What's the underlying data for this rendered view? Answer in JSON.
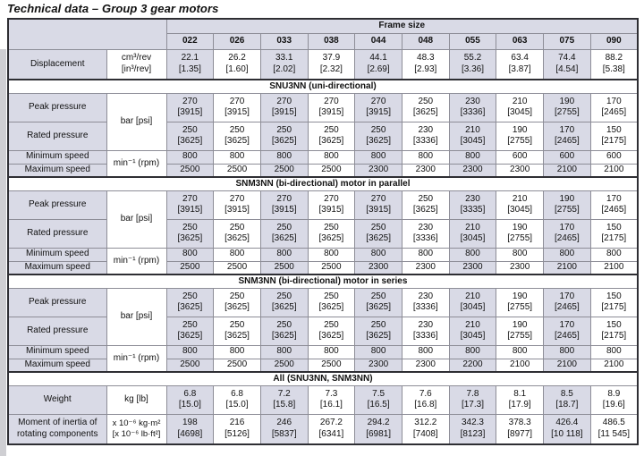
{
  "title": "Technical data – Group 3 gear motors",
  "colors": {
    "header_fill": "#d9dae6",
    "border_thin": "#8d8d97",
    "border_thick": "#2e2e33",
    "text": "#111111"
  },
  "table": {
    "frame_size_label": "Frame size",
    "columns": [
      "022",
      "026",
      "033",
      "038",
      "044",
      "048",
      "055",
      "063",
      "075",
      "090"
    ],
    "displacement": {
      "label": "Displacement",
      "unit_top": "cm³/rev",
      "unit_bottom": "[in³/rev]",
      "metric": [
        "22.1",
        "26.2",
        "33.1",
        "37.9",
        "44.1",
        "48.3",
        "55.2",
        "63.4",
        "74.4",
        "88.2"
      ],
      "imperial": [
        "[1.35]",
        "[1.60]",
        "[2.02]",
        "[2.32]",
        "[2.69]",
        "[2.93]",
        "[3.36]",
        "[3.87]",
        "[4.54]",
        "[5.38]"
      ]
    },
    "sections": [
      {
        "heading": "SNU3NN (uni-directional)",
        "pressure_unit": "bar [psi]",
        "speed_unit": "min⁻¹ (rpm)",
        "rows": [
          {
            "label": "Peak pressure",
            "values": [
              "270",
              "270",
              "270",
              "270",
              "270",
              "250",
              "230",
              "210",
              "190",
              "170"
            ],
            "sub": [
              "[3915]",
              "[3915]",
              "[3915]",
              "[3915]",
              "[3915]",
              "[3625]",
              "[3336]",
              "[3045]",
              "[2755]",
              "[2465]"
            ]
          },
          {
            "label": "Rated pressure",
            "values": [
              "250",
              "250",
              "250",
              "250",
              "250",
              "230",
              "210",
              "190",
              "170",
              "150"
            ],
            "sub": [
              "[3625]",
              "[3625]",
              "[3625]",
              "[3625]",
              "[3625]",
              "[3336]",
              "[3045]",
              "[2755]",
              "[2465]",
              "[2175]"
            ]
          },
          {
            "label": "Minimum speed",
            "values": [
              "800",
              "800",
              "800",
              "800",
              "800",
              "800",
              "800",
              "600",
              "600",
              "600"
            ]
          },
          {
            "label": "Maximum speed",
            "values": [
              "2500",
              "2500",
              "2500",
              "2500",
              "2300",
              "2300",
              "2300",
              "2300",
              "2100",
              "2100"
            ]
          }
        ]
      },
      {
        "heading": "SNM3NN (bi-directional) motor in parallel",
        "pressure_unit": "bar [psi]",
        "speed_unit": "min⁻¹ (rpm)",
        "rows": [
          {
            "label": "Peak pressure",
            "values": [
              "270",
              "270",
              "270",
              "270",
              "270",
              "250",
              "230",
              "210",
              "190",
              "170"
            ],
            "sub": [
              "[3915]",
              "[3915]",
              "[3915]",
              "[3915]",
              "[3915]",
              "[3625]",
              "[3335]",
              "[3045]",
              "[2755]",
              "[2465]"
            ]
          },
          {
            "label": "Rated pressure",
            "values": [
              "250",
              "250",
              "250",
              "250",
              "250",
              "230",
              "210",
              "190",
              "170",
              "150"
            ],
            "sub": [
              "[3625]",
              "[3625]",
              "[3625]",
              "[3625]",
              "[3625]",
              "[3336]",
              "[3045]",
              "[2755]",
              "[2465]",
              "[2175]"
            ]
          },
          {
            "label": "Minimum speed",
            "values": [
              "800",
              "800",
              "800",
              "800",
              "800",
              "800",
              "800",
              "800",
              "800",
              "800"
            ]
          },
          {
            "label": "Maximum speed",
            "values": [
              "2500",
              "2500",
              "2500",
              "2500",
              "2300",
              "2300",
              "2300",
              "2300",
              "2100",
              "2100"
            ]
          }
        ]
      },
      {
        "heading": "SNM3NN (bi-directional) motor in series",
        "pressure_unit": "bar [psi]",
        "speed_unit": "min⁻¹ (rpm)",
        "rows": [
          {
            "label": "Peak pressure",
            "values": [
              "250",
              "250",
              "250",
              "250",
              "250",
              "230",
              "210",
              "190",
              "170",
              "150"
            ],
            "sub": [
              "[3625]",
              "[3625]",
              "[3625]",
              "[3625]",
              "[3625]",
              "[3336]",
              "[3045]",
              "[2755]",
              "[2465]",
              "[2175]"
            ]
          },
          {
            "label": "Rated pressure",
            "values": [
              "250",
              "250",
              "250",
              "250",
              "250",
              "230",
              "210",
              "190",
              "170",
              "150"
            ],
            "sub": [
              "[3625]",
              "[3625]",
              "[3625]",
              "[3625]",
              "[3625]",
              "[3336]",
              "[3045]",
              "[2755]",
              "[2465]",
              "[2175]"
            ]
          },
          {
            "label": "Minimum speed",
            "values": [
              "800",
              "800",
              "800",
              "800",
              "800",
              "800",
              "800",
              "800",
              "800",
              "800"
            ]
          },
          {
            "label": "Maximum speed",
            "values": [
              "2500",
              "2500",
              "2500",
              "2500",
              "2300",
              "2300",
              "2200",
              "2100",
              "2100",
              "2100"
            ]
          }
        ]
      }
    ],
    "all_section": {
      "heading": "All (SNU3NN, SNM3NN)",
      "weight": {
        "label": "Weight",
        "unit": "kg [lb]",
        "values": [
          "6.8",
          "6.8",
          "7.2",
          "7.3",
          "7.5",
          "7.6",
          "7.8",
          "8.1",
          "8.5",
          "8.9"
        ],
        "sub": [
          "[15.0]",
          "[15.0]",
          "[15.8]",
          "[16.1]",
          "[16.5]",
          "[16.8]",
          "[17.3]",
          "[17.9]",
          "[18.7]",
          "[19.6]"
        ]
      },
      "inertia": {
        "label_line1": "Moment of inertia of",
        "label_line2": "rotating components",
        "unit_top": "x 10⁻⁶ kg·m²",
        "unit_bottom": "[x 10⁻⁶ lb·ft²]",
        "values": [
          "198",
          "216",
          "246",
          "267.2",
          "294.2",
          "312.2",
          "342.3",
          "378.3",
          "426.4",
          "486.5"
        ],
        "sub": [
          "[4698]",
          "[5126]",
          "[5837]",
          "[6341]",
          "[6981]",
          "[7408]",
          "[8123]",
          "[8977]",
          "[10 118]",
          "[11 545]"
        ]
      }
    }
  }
}
